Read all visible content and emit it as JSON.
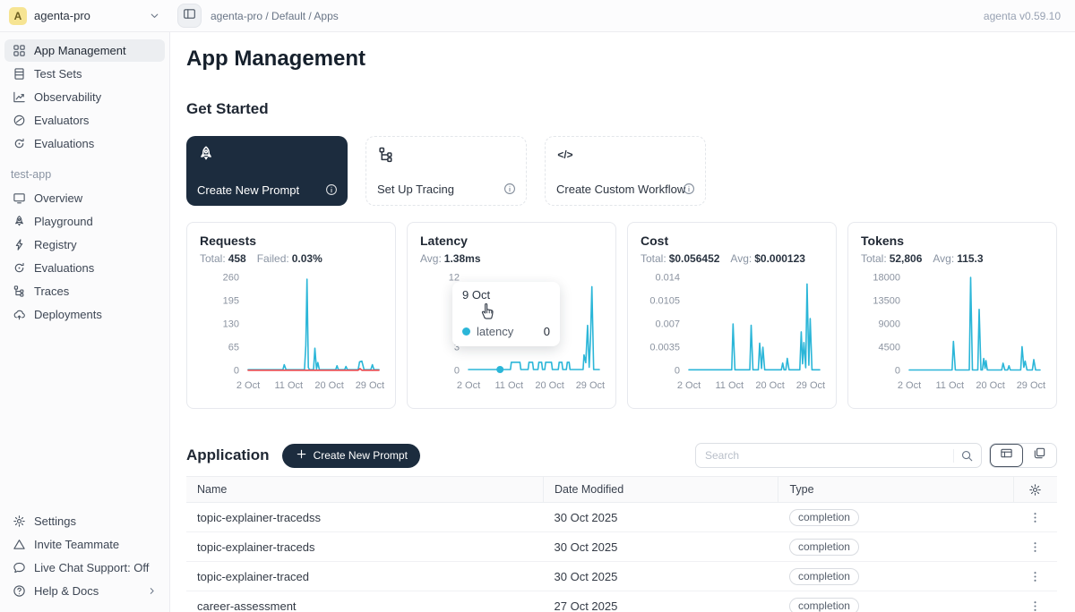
{
  "topbar": {
    "avatar_letter": "A",
    "workspace": "agenta-pro",
    "breadcrumb": "agenta-pro / Default / Apps",
    "version": "agenta v0.59.10"
  },
  "sidebar": {
    "main_items": [
      {
        "label": "App Management",
        "icon": "grid",
        "active": true
      },
      {
        "label": "Test Sets",
        "icon": "testsets",
        "active": false
      },
      {
        "label": "Observability",
        "icon": "observability",
        "active": false
      },
      {
        "label": "Evaluators",
        "icon": "evaluators",
        "active": false
      },
      {
        "label": "Evaluations",
        "icon": "evaluations",
        "active": false
      }
    ],
    "app_section_label": "test-app",
    "app_items": [
      {
        "label": "Overview",
        "icon": "overview"
      },
      {
        "label": "Playground",
        "icon": "rocket"
      },
      {
        "label": "Registry",
        "icon": "bolt"
      },
      {
        "label": "Evaluations",
        "icon": "evaluations"
      },
      {
        "label": "Traces",
        "icon": "traces"
      },
      {
        "label": "Deployments",
        "icon": "deploy"
      }
    ],
    "footer_items": [
      {
        "label": "Settings",
        "icon": "gear"
      },
      {
        "label": "Invite Teammate",
        "icon": "invite"
      },
      {
        "label": "Live Chat Support: Off",
        "icon": "chat"
      },
      {
        "label": "Help & Docs",
        "icon": "help",
        "chevron": true
      }
    ]
  },
  "page": {
    "title": "App Management",
    "get_started_title": "Get Started"
  },
  "get_started_cards": [
    {
      "label": "Create New Prompt",
      "icon": "rocket",
      "variant": "dark"
    },
    {
      "label": "Set Up Tracing",
      "icon": "traces",
      "variant": "light"
    },
    {
      "label": "Create Custom Workflow",
      "icon": "code",
      "variant": "light"
    }
  ],
  "colors": {
    "accent": "#2bb6d8",
    "danger": "#e5484d",
    "dark": "#1c2c3e"
  },
  "chart_data": [
    {
      "id": "requests",
      "type": "line",
      "title": "Requests",
      "stats": [
        {
          "label": "Total:",
          "value": "458"
        },
        {
          "label": "Failed:",
          "value": "0.03%"
        }
      ],
      "ylim": [
        0,
        260
      ],
      "y_ticks": [
        260,
        195,
        130,
        65,
        0
      ],
      "x_domain": [
        0,
        29
      ],
      "x_tick_days": [
        0,
        9,
        18,
        27
      ],
      "x_tick_labels": [
        "2 Oct",
        "11 Oct",
        "20 Oct",
        "29 Oct"
      ],
      "grid": false,
      "legend": "none",
      "series": [
        {
          "name": "requests",
          "color": "#2bb6d8",
          "points": [
            [
              0,
              2
            ],
            [
              7.7,
              2
            ],
            [
              8,
              16
            ],
            [
              8.4,
              2
            ],
            [
              12.5,
              2
            ],
            [
              12.8,
              70
            ],
            [
              13.05,
              255
            ],
            [
              13.35,
              8
            ],
            [
              13.6,
              2
            ],
            [
              14.5,
              2
            ],
            [
              14.8,
              62
            ],
            [
              15.15,
              4
            ],
            [
              15.45,
              22
            ],
            [
              15.8,
              2
            ],
            [
              19.4,
              2
            ],
            [
              19.7,
              13
            ],
            [
              20,
              2
            ],
            [
              21.4,
              2
            ],
            [
              21.7,
              11
            ],
            [
              22,
              2
            ],
            [
              24.4,
              2
            ],
            [
              24.7,
              24
            ],
            [
              25.2,
              26
            ],
            [
              25.7,
              2
            ],
            [
              27.2,
              2
            ],
            [
              27.55,
              16
            ],
            [
              27.9,
              2
            ],
            [
              29,
              2
            ]
          ]
        },
        {
          "name": "failed",
          "color": "#e5484d",
          "points": [
            [
              0,
              0.5
            ],
            [
              24.4,
              0.5
            ],
            [
              24.8,
              5
            ],
            [
              25.2,
              0.5
            ],
            [
              29,
              0.5
            ]
          ]
        }
      ]
    },
    {
      "id": "latency",
      "type": "line",
      "title": "Latency",
      "stats": [
        {
          "label": "Avg:",
          "value": "1.38ms"
        }
      ],
      "ylim": [
        0,
        12
      ],
      "y_ticks": [
        12,
        9,
        6,
        3,
        0
      ],
      "x_domain": [
        0,
        29
      ],
      "x_tick_days": [
        0,
        9,
        18,
        27
      ],
      "x_tick_labels": [
        "2 Oct",
        "11 Oct",
        "20 Oct",
        "29 Oct"
      ],
      "grid": false,
      "legend": "none",
      "series": [
        {
          "name": "latency",
          "color": "#2bb6d8",
          "marker": [
            7,
            0.12
          ],
          "points": [
            [
              0,
              0.12
            ],
            [
              9.3,
              0.12
            ],
            [
              9.5,
              1.05
            ],
            [
              11.4,
              1.05
            ],
            [
              11.6,
              0.12
            ],
            [
              13.2,
              0.12
            ],
            [
              13.4,
              1.05
            ],
            [
              14.2,
              1.05
            ],
            [
              14.4,
              0.12
            ],
            [
              15.4,
              0.12
            ],
            [
              15.6,
              1.05
            ],
            [
              16.2,
              1.05
            ],
            [
              16.4,
              0.12
            ],
            [
              16.9,
              0.12
            ],
            [
              17.1,
              1.05
            ],
            [
              18.4,
              1.05
            ],
            [
              18.6,
              0.12
            ],
            [
              19.9,
              0.12
            ],
            [
              20.1,
              1.05
            ],
            [
              20.7,
              1.05
            ],
            [
              20.9,
              0.12
            ],
            [
              21.7,
              0.12
            ],
            [
              21.9,
              1.05
            ],
            [
              22.3,
              1.05
            ],
            [
              22.5,
              0.12
            ],
            [
              25.4,
              0.12
            ],
            [
              25.6,
              2
            ],
            [
              26,
              1
            ],
            [
              26.4,
              5.8
            ],
            [
              26.75,
              0.4
            ],
            [
              27.05,
              4.2
            ],
            [
              27.35,
              10.8
            ],
            [
              27.75,
              0.12
            ],
            [
              29,
              0.12
            ]
          ]
        }
      ]
    },
    {
      "id": "cost",
      "type": "line",
      "title": "Cost",
      "stats": [
        {
          "label": "Total:",
          "value": "$0.056452"
        },
        {
          "label": "Avg:",
          "value": "$0.000123"
        }
      ],
      "ylim": [
        0,
        0.014
      ],
      "y_ticks": [
        0.014,
        0.0105,
        0.007,
        0.0035,
        0
      ],
      "x_domain": [
        0,
        29
      ],
      "x_tick_days": [
        0,
        9,
        18,
        27
      ],
      "x_tick_labels": [
        "2 Oct",
        "11 Oct",
        "20 Oct",
        "29 Oct"
      ],
      "grid": false,
      "legend": "none",
      "series": [
        {
          "name": "cost",
          "color": "#2bb6d8",
          "points": [
            [
              0,
              0.0001
            ],
            [
              9.5,
              0.0001
            ],
            [
              9.8,
              0.007
            ],
            [
              10.2,
              0.0001
            ],
            [
              13.5,
              0.0001
            ],
            [
              13.8,
              0.0068
            ],
            [
              14.2,
              0.0001
            ],
            [
              15.4,
              0.0001
            ],
            [
              15.7,
              0.0041
            ],
            [
              16.1,
              0.0003
            ],
            [
              16.4,
              0.0035
            ],
            [
              16.8,
              0.0001
            ],
            [
              20.5,
              0.0001
            ],
            [
              20.8,
              0.0011
            ],
            [
              21.1,
              0.0001
            ],
            [
              21.5,
              0.0001
            ],
            [
              21.8,
              0.0018
            ],
            [
              22.2,
              0.0001
            ],
            [
              24.6,
              0.0001
            ],
            [
              24.9,
              0.0058
            ],
            [
              25.2,
              0.001
            ],
            [
              25.5,
              0.0042
            ],
            [
              25.9,
              0.0004
            ],
            [
              26.2,
              0.013
            ],
            [
              26.6,
              0.0008
            ],
            [
              26.9,
              0.0078
            ],
            [
              27.3,
              0.0001
            ],
            [
              29,
              0.0001
            ]
          ]
        }
      ]
    },
    {
      "id": "tokens",
      "type": "line",
      "title": "Tokens",
      "stats": [
        {
          "label": "Total:",
          "value": "52,806"
        },
        {
          "label": "Avg:",
          "value": "115.3"
        }
      ],
      "ylim": [
        0,
        18000
      ],
      "y_ticks": [
        18000,
        13500,
        9000,
        4500,
        0
      ],
      "x_domain": [
        0,
        29
      ],
      "x_tick_days": [
        0,
        9,
        18,
        27
      ],
      "x_tick_labels": [
        "2 Oct",
        "11 Oct",
        "20 Oct",
        "29 Oct"
      ],
      "grid": false,
      "legend": "none",
      "series": [
        {
          "name": "tokens",
          "color": "#2bb6d8",
          "points": [
            [
              0,
              80
            ],
            [
              9.5,
              80
            ],
            [
              9.8,
              5600
            ],
            [
              10.2,
              80
            ],
            [
              13.3,
              80
            ],
            [
              13.6,
              18000
            ],
            [
              14,
              80
            ],
            [
              15.2,
              80
            ],
            [
              15.5,
              11800
            ],
            [
              15.9,
              80
            ],
            [
              16.2,
              80
            ],
            [
              16.5,
              2300
            ],
            [
              16.8,
              400
            ],
            [
              17,
              1900
            ],
            [
              17.3,
              80
            ],
            [
              20.5,
              80
            ],
            [
              20.8,
              1400
            ],
            [
              21.2,
              80
            ],
            [
              21.8,
              80
            ],
            [
              22.1,
              900
            ],
            [
              22.4,
              80
            ],
            [
              24.7,
              80
            ],
            [
              25,
              4600
            ],
            [
              25.4,
              600
            ],
            [
              25.7,
              1800
            ],
            [
              26.1,
              80
            ],
            [
              27.3,
              80
            ],
            [
              27.6,
              2100
            ],
            [
              28,
              80
            ],
            [
              29,
              80
            ]
          ]
        }
      ]
    }
  ],
  "tooltip": {
    "date": "9 Oct",
    "series": "latency",
    "value": "0"
  },
  "application": {
    "title": "Application",
    "create_button_label": "Create New Prompt",
    "search_placeholder": "Search"
  },
  "table": {
    "columns": [
      "Name",
      "Date Modified",
      "Type"
    ],
    "rows": [
      {
        "name": "topic-explainer-tracedss",
        "date": "30 Oct 2025",
        "type": "completion"
      },
      {
        "name": "topic-explainer-traceds",
        "date": "30 Oct 2025",
        "type": "completion"
      },
      {
        "name": "topic-explainer-traced",
        "date": "30 Oct 2025",
        "type": "completion"
      },
      {
        "name": "career-assessment",
        "date": "27 Oct 2025",
        "type": "completion"
      }
    ]
  }
}
